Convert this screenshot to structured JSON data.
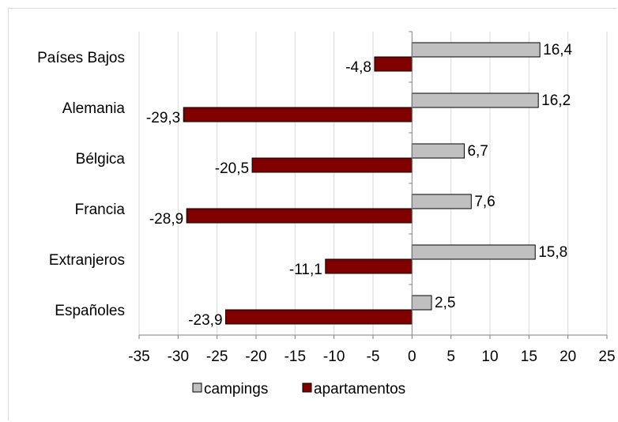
{
  "chart_data": {
    "type": "bar",
    "orientation": "horizontal",
    "categories": [
      "Países Bajos",
      "Alemania",
      "Bélgica",
      "Francia",
      "Extranjeros",
      "Españoles"
    ],
    "series": [
      {
        "name": "campings",
        "color": "#c0c0c0",
        "values": [
          16.4,
          16.2,
          6.7,
          7.6,
          15.8,
          2.5
        ],
        "labels": [
          "16,4",
          "16,2",
          "6,7",
          "7,6",
          "15,8",
          "2,5"
        ]
      },
      {
        "name": "apartamentos",
        "color": "#800000",
        "values": [
          -4.8,
          -29.3,
          -20.5,
          -28.9,
          -11.1,
          -23.9
        ],
        "labels": [
          "-4,8",
          "-29,3",
          "-20,5",
          "-28,9",
          "-11,1",
          "-23,9"
        ]
      }
    ],
    "xlim": [
      -35,
      25
    ],
    "xticks": [
      -35,
      -30,
      -25,
      -20,
      -15,
      -10,
      -5,
      0,
      5,
      10,
      15,
      20,
      25
    ],
    "grid": "vertical major gridlines",
    "legend_position": "bottom"
  }
}
